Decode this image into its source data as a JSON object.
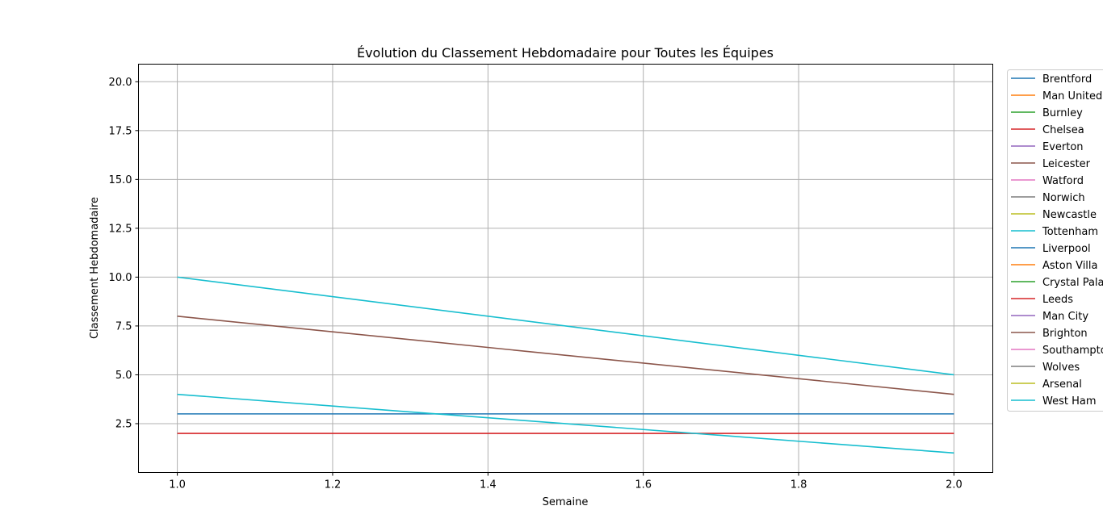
{
  "chart_data": {
    "type": "line",
    "title": "Évolution du Classement Hebdomadaire pour Toutes les Équipes",
    "xlabel": "Semaine",
    "ylabel": "Classement Hebdomadaire",
    "xlim": [
      0.95,
      2.05
    ],
    "ylim": [
      0.0,
      20.9
    ],
    "x_ticks": [
      "1.0",
      "1.2",
      "1.4",
      "1.6",
      "1.8",
      "2.0"
    ],
    "y_ticks": [
      "2.5",
      "5.0",
      "7.5",
      "10.0",
      "12.5",
      "15.0",
      "17.5",
      "20.0"
    ],
    "grid": true,
    "legend_placement": "outside-right",
    "x": [
      1.0,
      2.0
    ],
    "series": [
      {
        "name": "Brentford",
        "color": "#1f77b4",
        "values": [
          null,
          null
        ]
      },
      {
        "name": "Man United",
        "color": "#ff7f0e",
        "values": [
          null,
          null
        ]
      },
      {
        "name": "Burnley",
        "color": "#2ca02c",
        "values": [
          null,
          null
        ]
      },
      {
        "name": "Chelsea",
        "color": "#d62728",
        "values": [
          null,
          null
        ]
      },
      {
        "name": "Everton",
        "color": "#9467bd",
        "values": [
          null,
          null
        ]
      },
      {
        "name": "Leicester",
        "color": "#8c564b",
        "values": [
          null,
          null
        ]
      },
      {
        "name": "Watford",
        "color": "#e377c2",
        "values": [
          null,
          null
        ]
      },
      {
        "name": "Norwich",
        "color": "#7f7f7f",
        "values": [
          null,
          null
        ]
      },
      {
        "name": "Newcastle",
        "color": "#bcbd22",
        "values": [
          null,
          null
        ]
      },
      {
        "name": "Tottenham",
        "color": "#17becf",
        "values": [
          10,
          5
        ]
      },
      {
        "name": "Liverpool",
        "color": "#1f77b4",
        "values": [
          3,
          3
        ]
      },
      {
        "name": "Aston Villa",
        "color": "#ff7f0e",
        "values": [
          null,
          null
        ]
      },
      {
        "name": "Crystal Palace",
        "color": "#2ca02c",
        "values": [
          null,
          null
        ]
      },
      {
        "name": "Leeds",
        "color": "#d62728",
        "values": [
          2,
          2
        ]
      },
      {
        "name": "Man City",
        "color": "#9467bd",
        "values": [
          null,
          null
        ]
      },
      {
        "name": "Brighton",
        "color": "#8c564b",
        "values": [
          8,
          4
        ]
      },
      {
        "name": "Southampton",
        "color": "#e377c2",
        "values": [
          null,
          null
        ]
      },
      {
        "name": "Wolves",
        "color": "#7f7f7f",
        "values": [
          null,
          null
        ]
      },
      {
        "name": "Arsenal",
        "color": "#bcbd22",
        "values": [
          null,
          null
        ]
      },
      {
        "name": "West Ham",
        "color": "#17becf",
        "values": [
          4,
          1
        ]
      }
    ]
  }
}
